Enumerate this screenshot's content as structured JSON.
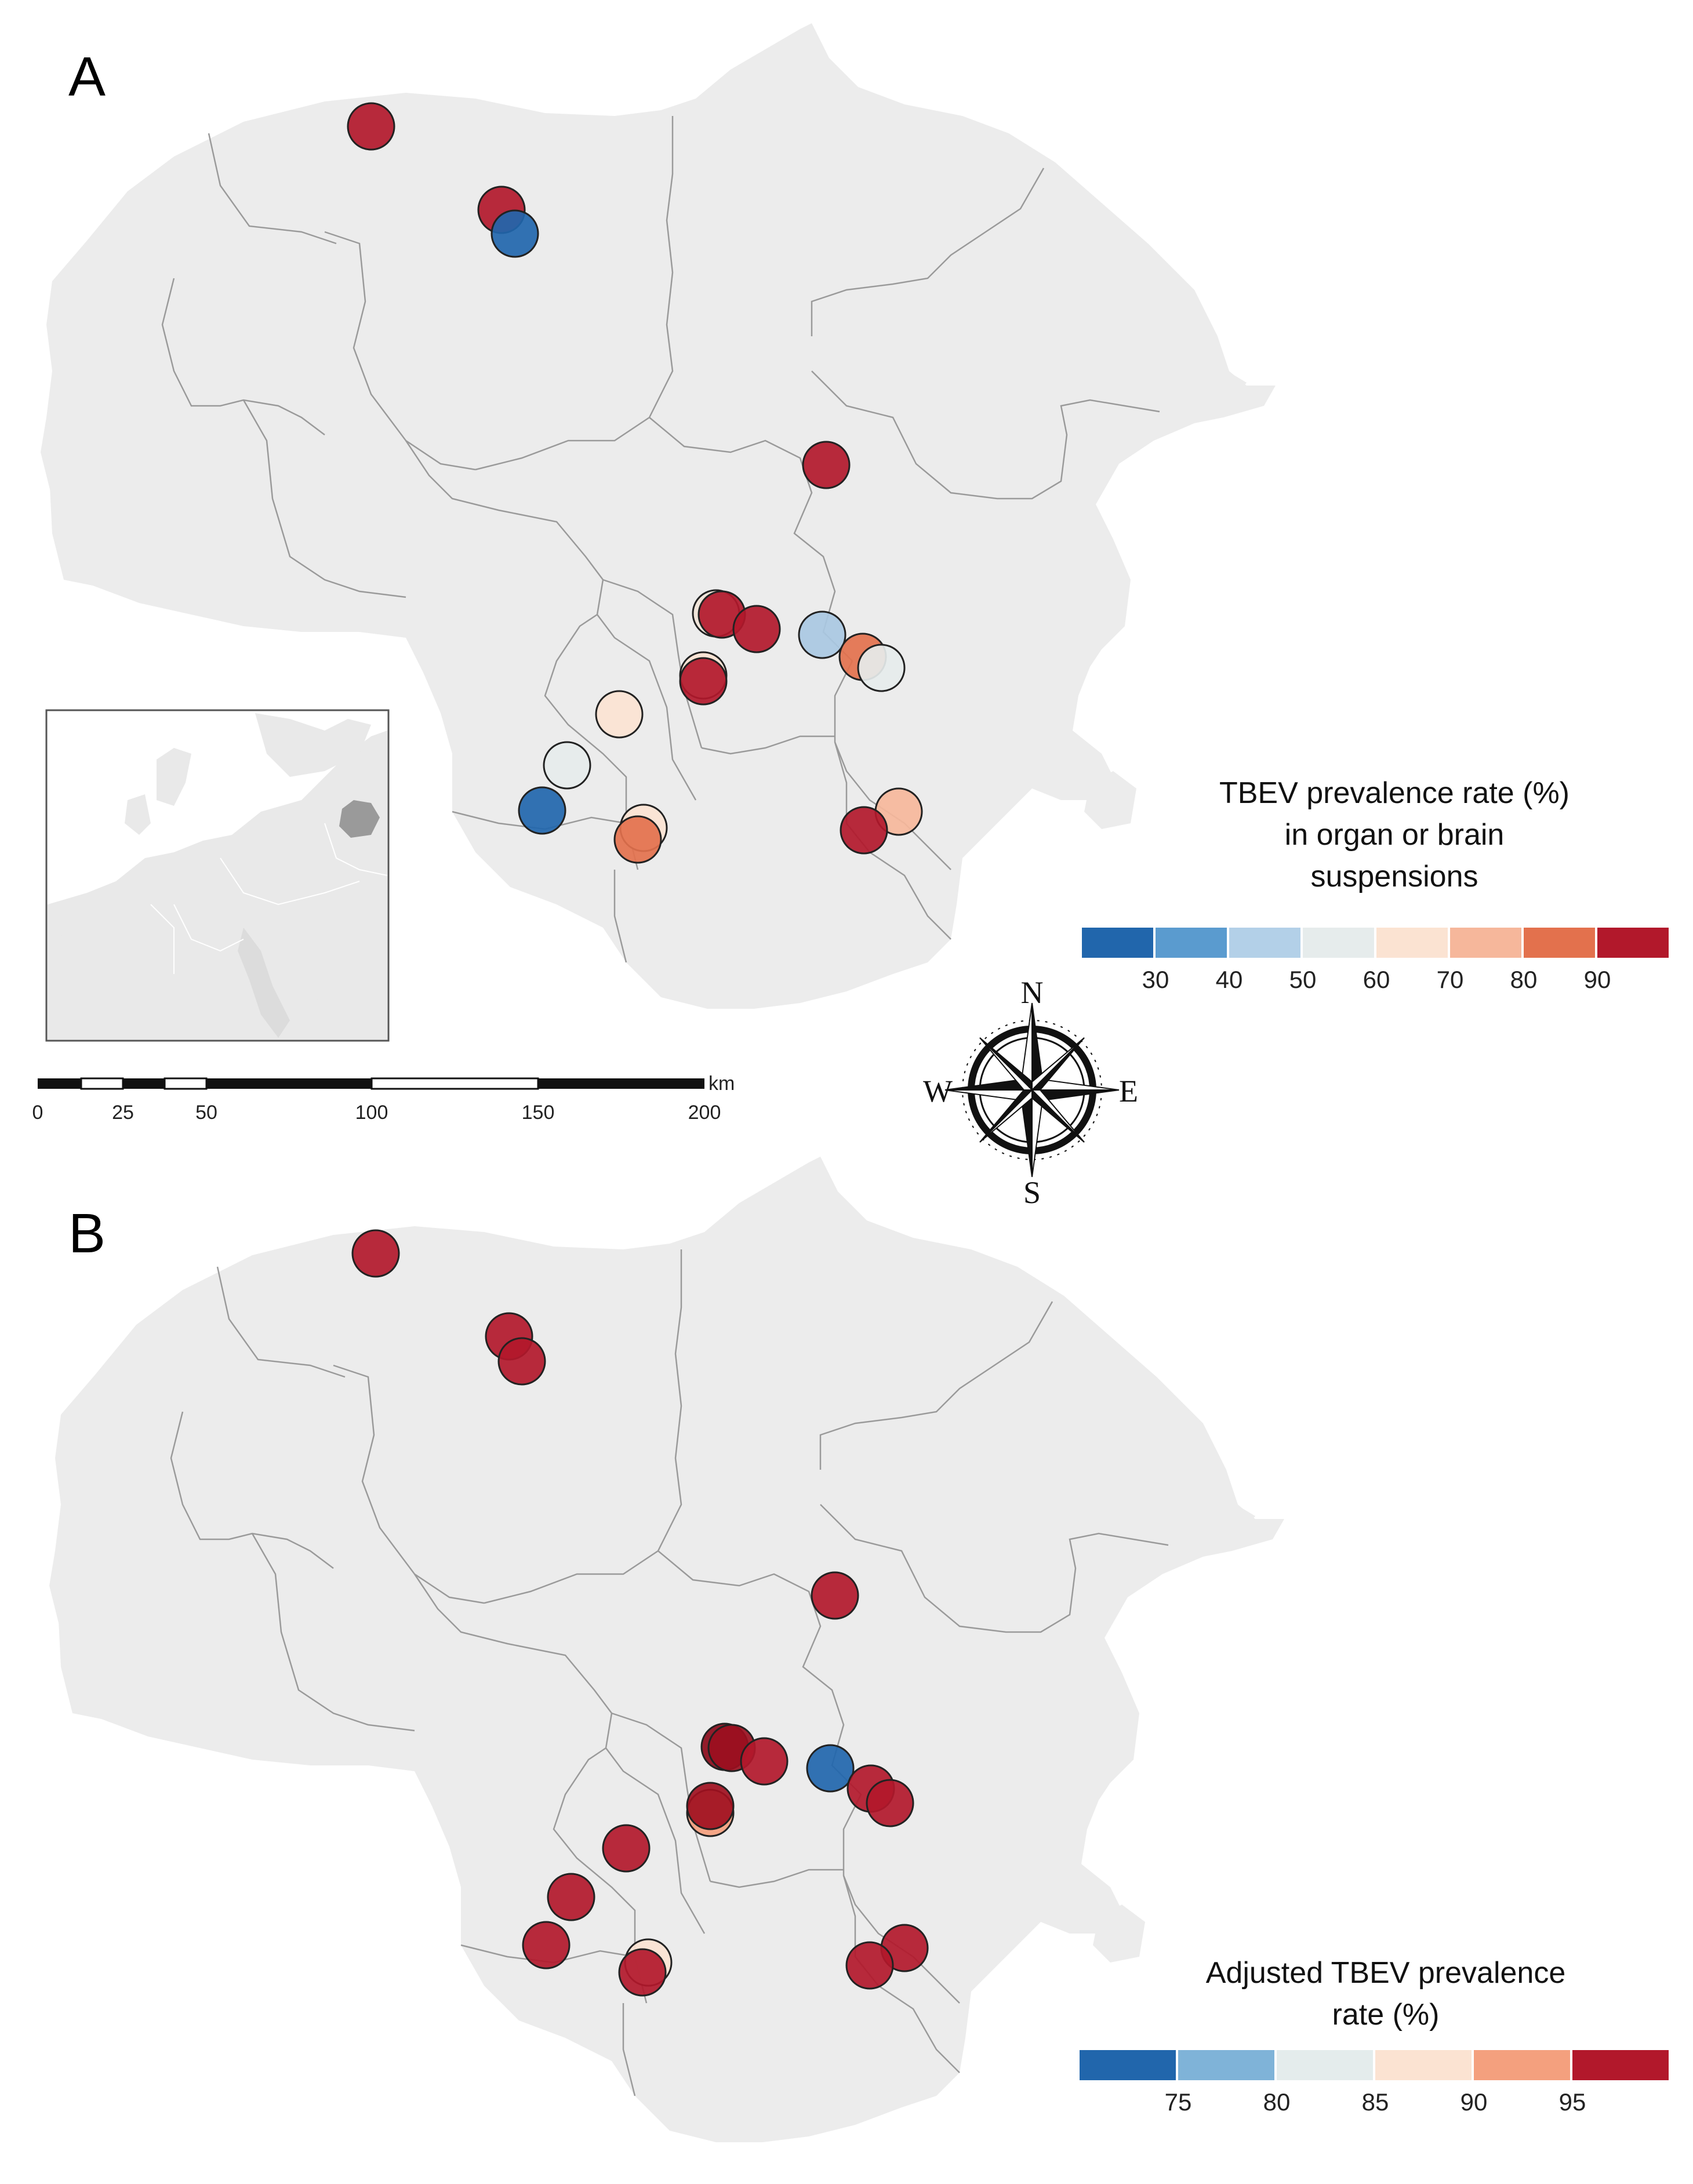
{
  "panels": [
    {
      "letter": "A",
      "legend": {
        "title_lines": [
          "TBEV prevalence rate (%)",
          "in organ or brain",
          "suspensions"
        ],
        "ticks": [
          "30",
          "40",
          "50",
          "60",
          "70",
          "80",
          "90"
        ],
        "colors": [
          "#2166ac",
          "#5a9bcf",
          "#b3d0e8",
          "#e6ecec",
          "#fbe3d2",
          "#f6b79b",
          "#e3714d",
          "#b2182b"
        ]
      },
      "sites": [
        {
          "id": "a1",
          "color": "#b2182b"
        },
        {
          "id": "a2",
          "color": "#b2182b"
        },
        {
          "id": "a3",
          "color": "#2166ac"
        },
        {
          "id": "a4",
          "color": "#b2182b"
        },
        {
          "id": "a5",
          "color": "#f0e4d8"
        },
        {
          "id": "a6",
          "color": "#b2182b"
        },
        {
          "id": "a7",
          "color": "#b2182b"
        },
        {
          "id": "a8",
          "color": "#fbe3d2"
        },
        {
          "id": "a9",
          "color": "#b2182b"
        },
        {
          "id": "a10",
          "color": "#a9c8e2"
        },
        {
          "id": "a11",
          "color": "#e3714d"
        },
        {
          "id": "a12",
          "color": "#e6ecec"
        },
        {
          "id": "a13",
          "color": "#fbe3d2"
        },
        {
          "id": "a14",
          "color": "#e6ecec"
        },
        {
          "id": "a15",
          "color": "#2166ac"
        },
        {
          "id": "a16",
          "color": "#fbe3d2"
        },
        {
          "id": "a17",
          "color": "#e3714d"
        },
        {
          "id": "a18",
          "color": "#f6b79b"
        },
        {
          "id": "a19",
          "color": "#b2182b"
        }
      ]
    },
    {
      "letter": "B",
      "legend": {
        "title_lines": [
          "Adjusted TBEV prevalence",
          "rate (%)"
        ],
        "ticks": [
          "75",
          "80",
          "85",
          "90",
          "95"
        ],
        "colors": [
          "#2166ac",
          "#7fb3d8",
          "#e4ecec",
          "#fbe3d2",
          "#f4a07e",
          "#b2182b"
        ]
      },
      "sites": [
        {
          "id": "b1",
          "color": "#b2182b"
        },
        {
          "id": "b2",
          "color": "#b2182b"
        },
        {
          "id": "b3",
          "color": "#b2182b"
        },
        {
          "id": "b4",
          "color": "#b2182b"
        },
        {
          "id": "b5",
          "color": "#8b0a1a"
        },
        {
          "id": "b6",
          "color": "#9b0f1f"
        },
        {
          "id": "b7",
          "color": "#b2182b"
        },
        {
          "id": "b8",
          "color": "#2166ac"
        },
        {
          "id": "b9",
          "color": "#b2182b"
        },
        {
          "id": "b10",
          "color": "#b2182b"
        },
        {
          "id": "b11",
          "color": "#f4a07e"
        },
        {
          "id": "b12",
          "color": "#a01020"
        },
        {
          "id": "b13",
          "color": "#b2182b"
        },
        {
          "id": "b14",
          "color": "#b2182b"
        },
        {
          "id": "b15",
          "color": "#b2182b"
        },
        {
          "id": "b16",
          "color": "#fbe3d2"
        },
        {
          "id": "b17",
          "color": "#b2182b"
        },
        {
          "id": "b18",
          "color": "#b2182b"
        },
        {
          "id": "b19",
          "color": "#b2182b"
        }
      ]
    }
  ],
  "scale_bar": {
    "unit": "km",
    "labels": [
      "0",
      "25",
      "50",
      "100",
      "150",
      "200"
    ]
  },
  "compass": {
    "n": "N",
    "s": "S",
    "e": "E",
    "w": "W"
  },
  "inset": {
    "highlight_color": "#9a9a9a"
  }
}
